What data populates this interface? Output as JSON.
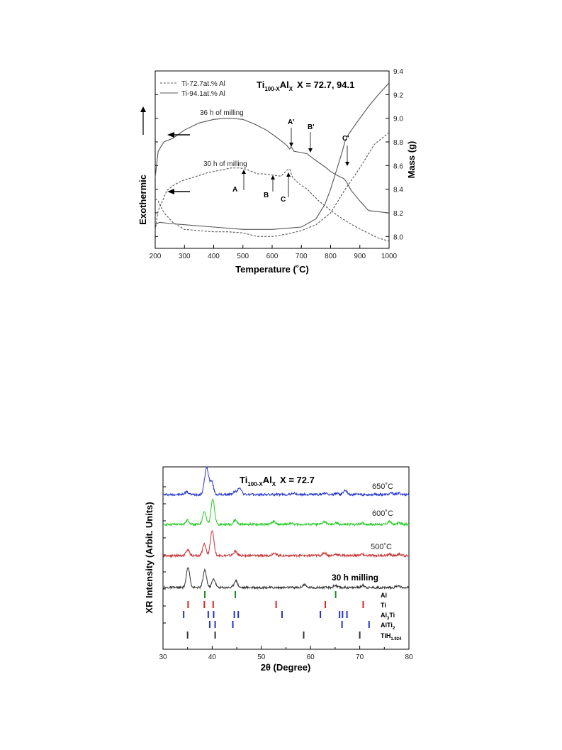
{
  "chart_data": [
    {
      "type": "line",
      "title_main": "Ti",
      "title_sub": "100-X",
      "title_main2": "Al",
      "title_sub2": "X",
      "title_rest": "X = 72.7, 94.1",
      "xlabel": "Temperature (˚C)",
      "ylabel_left": "Exothermic",
      "ylabel_right": "Mass (g)",
      "xlim": [
        200,
        1000
      ],
      "ylim_right": [
        7.9,
        9.4
      ],
      "xticks": [
        "200",
        "300",
        "400",
        "500",
        "600",
        "700",
        "800",
        "900",
        "1000"
      ],
      "yticks_right": [
        "8.0",
        "8.2",
        "8.4",
        "8.6",
        "8.8",
        "9.0",
        "9.2",
        "9.4"
      ],
      "legend": [
        {
          "name": "Ti-72.7at.% Al",
          "style": "dashed"
        },
        {
          "name": "Ti-94.1at.% Al",
          "style": "solid"
        }
      ],
      "annotations": {
        "milling_36": "36 h of milling",
        "milling_30": "30 h of milling",
        "A": "A",
        "B": "B",
        "C": "C",
        "A_prime": "A'",
        "B_prime": "B'",
        "C_prime": "C'"
      },
      "series": [
        {
          "name": "Ti-94.1at.% Al",
          "role": "dsc",
          "style": "solid",
          "x": [
            200,
            210,
            230,
            260,
            300,
            350,
            400,
            440,
            460,
            500,
            540,
            580,
            620,
            650,
            660,
            665,
            675,
            700,
            720,
            740,
            780,
            800,
            820,
            845,
            855,
            870,
            900,
            930,
            960,
            1000
          ],
          "y": [
            8.5,
            8.72,
            8.8,
            8.83,
            8.9,
            8.96,
            8.99,
            9.0,
            9.0,
            8.99,
            8.95,
            8.9,
            8.83,
            8.77,
            8.74,
            8.76,
            8.72,
            8.71,
            8.7,
            8.66,
            8.59,
            8.55,
            8.52,
            8.49,
            8.46,
            8.39,
            8.3,
            8.22,
            8.21,
            8.2
          ]
        },
        {
          "name": "Ti-94.1at.% Al",
          "role": "mass",
          "style": "solid",
          "x": [
            200,
            215,
            250,
            300,
            400,
            500,
            600,
            700,
            750,
            780,
            800,
            820,
            840,
            850,
            860,
            880,
            900,
            930,
            960,
            1000
          ],
          "y": [
            8.1,
            8.12,
            8.11,
            8.1,
            8.08,
            8.06,
            8.06,
            8.08,
            8.15,
            8.27,
            8.4,
            8.56,
            8.72,
            8.81,
            8.86,
            8.93,
            9.0,
            9.1,
            9.19,
            9.3
          ]
        },
        {
          "name": "Ti-72.7at.% Al",
          "role": "dsc",
          "style": "dashed",
          "x": [
            200,
            210,
            225,
            240,
            260,
            290,
            330,
            380,
            420,
            460,
            490,
            510,
            530,
            550,
            570,
            600,
            630,
            650,
            660,
            670,
            690,
            720,
            760,
            800,
            840,
            880,
            920,
            960,
            1000
          ],
          "y": [
            8.05,
            8.22,
            8.3,
            8.39,
            8.43,
            8.47,
            8.5,
            8.54,
            8.56,
            8.58,
            8.58,
            8.57,
            8.55,
            8.53,
            8.53,
            8.52,
            8.51,
            8.56,
            8.57,
            8.5,
            8.45,
            8.4,
            8.3,
            8.22,
            8.15,
            8.09,
            8.04,
            7.99,
            7.96
          ]
        },
        {
          "name": "Ti-72.7at.% Al",
          "role": "mass",
          "style": "dashed",
          "x": [
            200,
            210,
            230,
            260,
            300,
            350,
            400,
            450,
            500,
            550,
            600,
            650,
            700,
            750,
            800,
            850,
            900,
            950,
            1000
          ],
          "y": [
            8.32,
            8.3,
            8.2,
            8.12,
            8.06,
            8.05,
            8.04,
            8.04,
            8.03,
            8.0,
            8.0,
            8.02,
            8.05,
            8.1,
            8.2,
            8.4,
            8.58,
            8.78,
            8.88
          ]
        }
      ]
    },
    {
      "type": "line",
      "title_main": "Ti",
      "title_sub": "100-X",
      "title_main2": "Al",
      "title_sub2": "X",
      "title_rest": "X = 72.7",
      "xlabel": "2θ (Degree)",
      "ylabel": "XR Intensity (Arbit. Units)",
      "xlim": [
        30,
        80
      ],
      "xticks": [
        "30",
        "40",
        "50",
        "60",
        "70",
        "80"
      ],
      "curve_labels": [
        "650˚C",
        "600˚C",
        "500˚C",
        "30 h milling"
      ],
      "colors": {
        "c650": "#2233cc",
        "c600": "#22cc22",
        "c500": "#cc3333",
        "c30h": "#333333",
        "Al": "#228822",
        "Ti": "#dd2222",
        "Al3Ti": "#2233cc",
        "AlTi2": "#2233cc",
        "TiH": "#333333"
      },
      "series": [
        {
          "name": "650˚C",
          "baseline": 10,
          "peaks": [
            [
              34.8,
              2
            ],
            [
              38.6,
              8
            ],
            [
              39.0,
              14
            ],
            [
              39.9,
              9
            ],
            [
              44.6,
              2
            ],
            [
              45.6,
              5
            ],
            [
              56.5,
              1
            ],
            [
              62.8,
              1
            ],
            [
              65.3,
              1
            ],
            [
              67.0,
              3
            ],
            [
              76.5,
              1
            ],
            [
              78.0,
              1
            ]
          ]
        },
        {
          "name": "600˚C",
          "baseline": 45,
          "peaks": [
            [
              35.0,
              3
            ],
            [
              38.4,
              9
            ],
            [
              40.1,
              18
            ],
            [
              44.7,
              3
            ],
            [
              52.5,
              2
            ],
            [
              56.0,
              1
            ],
            [
              62.8,
              2
            ],
            [
              65.2,
              1
            ],
            [
              70.5,
              1
            ],
            [
              76.0,
              2
            ],
            [
              78.0,
              1
            ]
          ]
        },
        {
          "name": "500˚C",
          "baseline": 80,
          "peaks": [
            [
              35.0,
              4
            ],
            [
              38.4,
              8
            ],
            [
              40.0,
              18
            ],
            [
              44.7,
              3
            ],
            [
              52.6,
              2
            ],
            [
              62.8,
              2
            ],
            [
              65.2,
              1
            ],
            [
              70.5,
              1
            ],
            [
              76.0,
              1
            ],
            [
              78.0,
              1
            ]
          ]
        },
        {
          "name": "30 h milling",
          "baseline": 115,
          "peaks": [
            [
              35.1,
              14
            ],
            [
              38.5,
              12
            ],
            [
              40.3,
              6
            ],
            [
              44.8,
              5
            ],
            [
              58.7,
              2
            ],
            [
              65.0,
              1.5
            ],
            [
              70.7,
              1.5
            ],
            [
              77.8,
              1.5
            ]
          ]
        }
      ],
      "reference_phases": [
        {
          "name": "Al",
          "positions": [
            38.5,
            44.7,
            65.1
          ]
        },
        {
          "name": "Ti",
          "positions": [
            35.1,
            38.4,
            40.2,
            53.0,
            63.0,
            70.7
          ]
        },
        {
          "name": "Al",
          "name_sub": "3",
          "name_rest": "Ti",
          "positions": [
            34.2,
            39.2,
            40.3,
            44.5,
            45.3,
            54.2,
            62.0,
            65.9,
            66.5,
            67.4
          ]
        },
        {
          "name": "AlTi",
          "name_sub": "2",
          "positions": [
            39.5,
            40.6,
            44.2,
            66.4,
            71.9
          ]
        },
        {
          "name": "TiH",
          "name_sub": "1.924",
          "positions": [
            35.0,
            40.6,
            58.6,
            70.0
          ]
        }
      ]
    }
  ]
}
